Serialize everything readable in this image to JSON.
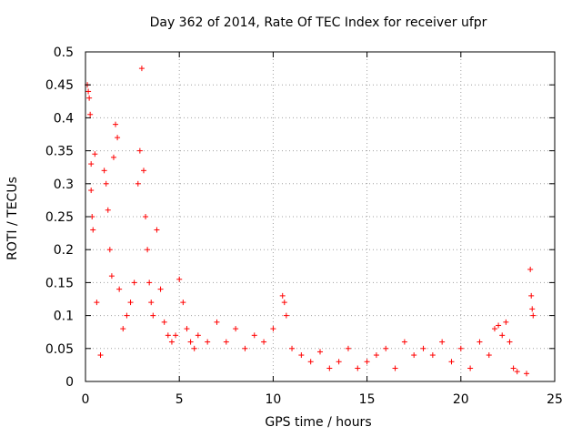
{
  "chart_data": {
    "type": "scatter",
    "title": "Day 362 of 2014, Rate Of TEC Index for receiver ufpr",
    "xlabel": "GPS time / hours",
    "ylabel": "ROTI / TECUs",
    "xlim": [
      0,
      25
    ],
    "ylim": [
      0,
      0.5
    ],
    "xticks": [
      0,
      5,
      10,
      15,
      20,
      25
    ],
    "yticks": [
      0,
      0.05,
      0.1,
      0.15,
      0.2,
      0.25,
      0.3,
      0.35,
      0.4,
      0.45,
      0.5
    ],
    "grid": true,
    "marker": "+",
    "marker_color": "#ff0000",
    "series": [
      {
        "name": "ROTI",
        "x": [
          0.1,
          0.15,
          0.2,
          0.25,
          0.3,
          0.3,
          0.35,
          0.4,
          0.5,
          0.6,
          0.8,
          1.0,
          1.1,
          1.2,
          1.3,
          1.4,
          1.5,
          1.6,
          1.7,
          1.8,
          2.0,
          2.2,
          2.4,
          2.6,
          2.8,
          2.9,
          3.0,
          3.1,
          3.2,
          3.3,
          3.4,
          3.5,
          3.6,
          3.8,
          4.0,
          4.2,
          4.4,
          4.6,
          4.8,
          5.0,
          5.2,
          5.4,
          5.6,
          5.8,
          6.0,
          6.5,
          7.0,
          7.5,
          8.0,
          8.5,
          9.0,
          9.5,
          10.0,
          10.5,
          10.6,
          10.7,
          11.0,
          11.5,
          12.0,
          12.5,
          13.0,
          13.5,
          14.0,
          14.5,
          15.0,
          15.5,
          16.0,
          16.5,
          17.0,
          17.5,
          18.0,
          18.5,
          19.0,
          19.5,
          20.0,
          20.5,
          21.0,
          21.5,
          21.8,
          22.0,
          22.2,
          22.4,
          22.6,
          22.8,
          23.0,
          23.5,
          23.7,
          23.75,
          23.8,
          23.85
        ],
        "y": [
          0.45,
          0.44,
          0.43,
          0.405,
          0.33,
          0.29,
          0.25,
          0.23,
          0.345,
          0.12,
          0.04,
          0.32,
          0.3,
          0.26,
          0.2,
          0.16,
          0.34,
          0.39,
          0.37,
          0.14,
          0.08,
          0.1,
          0.12,
          0.15,
          0.3,
          0.35,
          0.475,
          0.32,
          0.25,
          0.2,
          0.15,
          0.12,
          0.1,
          0.23,
          0.14,
          0.09,
          0.07,
          0.06,
          0.07,
          0.155,
          0.12,
          0.08,
          0.06,
          0.05,
          0.07,
          0.06,
          0.09,
          0.06,
          0.08,
          0.05,
          0.07,
          0.06,
          0.08,
          0.13,
          0.12,
          0.1,
          0.05,
          0.04,
          0.03,
          0.045,
          0.02,
          0.03,
          0.05,
          0.02,
          0.03,
          0.04,
          0.05,
          0.02,
          0.06,
          0.04,
          0.05,
          0.04,
          0.06,
          0.03,
          0.05,
          0.02,
          0.06,
          0.04,
          0.08,
          0.085,
          0.07,
          0.09,
          0.06,
          0.02,
          0.015,
          0.012,
          0.17,
          0.13,
          0.11,
          0.1
        ]
      }
    ]
  }
}
